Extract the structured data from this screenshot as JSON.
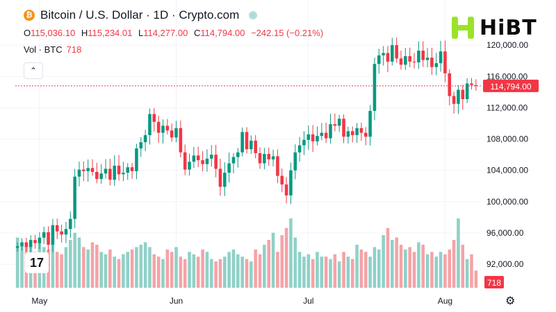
{
  "header": {
    "coin_symbol": "₿",
    "title": "Bitcoin / U.S. Dollar · 1D · Crypto.com",
    "status_icon": "live-dot-icon"
  },
  "ohlc": {
    "o_label": "O",
    "o_value": "115,036.10",
    "h_label": "H",
    "h_value": "115,234.01",
    "l_label": "L",
    "l_value": "114,277.00",
    "c_label": "C",
    "c_value": "114,794.00",
    "change": "−242.15 (−0.21%)"
  },
  "volume": {
    "label": "Vol · BTC",
    "value": "718"
  },
  "logo": {
    "text": "HiBT"
  },
  "tv_badge": "17",
  "colors": {
    "up": "#089981",
    "down": "#f23645",
    "vol_up": "#8fd1c7",
    "vol_down": "#f5a3a7",
    "grid": "#f0f3fa",
    "text": "#131722"
  },
  "chart_data": {
    "type": "candlestick",
    "title": "Bitcoin / U.S. Dollar · 1D · Crypto.com",
    "ylim": [
      89000,
      124000
    ],
    "y_ticks": [
      92000,
      96000,
      100000,
      104000,
      108000,
      112000,
      116000,
      120000
    ],
    "y_tick_labels": [
      "92,000.00",
      "96,000.00",
      "100,000.00",
      "104,000.00",
      "108,000.00",
      "112,000.00",
      "116,000.00",
      "120,000.00"
    ],
    "x_ticks": [
      {
        "label": "May",
        "index": 5
      },
      {
        "label": "Jun",
        "index": 36
      },
      {
        "label": "Jul",
        "index": 66
      },
      {
        "label": "Aug",
        "index": 97
      }
    ],
    "last_price": 114794,
    "last_price_label": "114,794.00",
    "last_volume_label": "718",
    "closes": [
      94300,
      94800,
      94200,
      95100,
      94700,
      95400,
      96100,
      94500,
      97000,
      96200,
      95800,
      96500,
      97800,
      103200,
      104100,
      103900,
      104300,
      103800,
      102900,
      103600,
      104200,
      102800,
      104600,
      103500,
      103700,
      104400,
      103900,
      106800,
      107600,
      108500,
      111200,
      110200,
      108800,
      109700,
      109100,
      108200,
      109400,
      106300,
      104100,
      105100,
      105900,
      105300,
      104800,
      105500,
      106000,
      104200,
      101900,
      103700,
      104900,
      105700,
      106300,
      108900,
      106700,
      107800,
      106200,
      104900,
      106100,
      105400,
      105800,
      103300,
      102200,
      100800,
      104000,
      106300,
      107200,
      107900,
      108600,
      107700,
      108400,
      108800,
      108100,
      109900,
      109700,
      110600,
      108300,
      109000,
      108500,
      109400,
      108800,
      108300,
      111600,
      117600,
      118700,
      119000,
      117900,
      120000,
      118300,
      117500,
      118600,
      117900,
      117800,
      119300,
      118100,
      118400,
      117200,
      117700,
      119200,
      116400,
      113500,
      112500,
      114300,
      113100,
      115100,
      114900,
      114794
    ],
    "volumes": [
      2100,
      1900,
      1700,
      1800,
      1500,
      1900,
      1700,
      1600,
      1800,
      1500,
      1400,
      1700,
      2000,
      2300,
      2100,
      1700,
      1600,
      1900,
      1800,
      1500,
      1400,
      1600,
      1300,
      1200,
      1400,
      1500,
      1600,
      1700,
      1800,
      1900,
      1700,
      1400,
      1300,
      1200,
      1600,
      1500,
      1700,
      1300,
      1200,
      1500,
      1400,
      1300,
      1600,
      1500,
      1200,
      1100,
      1200,
      1300,
      1500,
      1600,
      1400,
      1300,
      1200,
      1100,
      1600,
      1400,
      1800,
      2000,
      2300,
      1500,
      2200,
      2500,
      2900,
      2100,
      1500,
      1300,
      1400,
      1200,
      1500,
      1300,
      1300,
      1200,
      1400,
      1100,
      1500,
      1300,
      1200,
      1800,
      1600,
      1500,
      1300,
      1700,
      1600,
      2200,
      2500,
      2000,
      2100,
      1800,
      1600,
      1700,
      1500,
      1900,
      1800,
      1400,
      1500,
      1300,
      1500,
      1400,
      1600,
      2000,
      2900,
      1800,
      1200,
      1400,
      718
    ]
  }
}
